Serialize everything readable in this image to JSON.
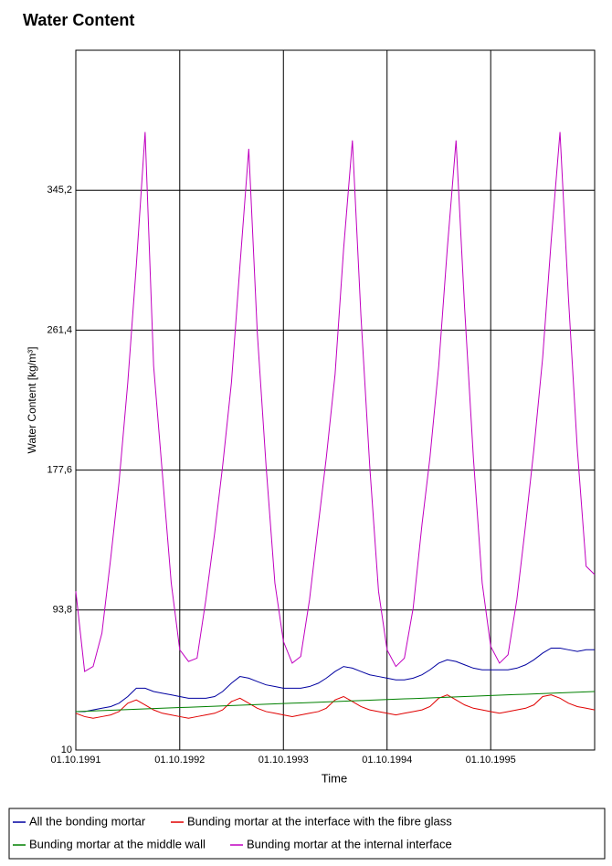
{
  "chart_data": {
    "type": "line",
    "title": "Water Content",
    "x_label": "Time",
    "y_label": "Water Content [kg/m³]",
    "x": [
      "01.10.1991",
      "01.11.1991",
      "01.12.1991",
      "01.01.1992",
      "01.02.1992",
      "01.03.1992",
      "01.04.1992",
      "01.05.1992",
      "01.06.1992",
      "01.07.1992",
      "01.08.1992",
      "01.09.1992",
      "01.10.1992",
      "01.11.1992",
      "01.12.1992",
      "01.01.1993",
      "01.02.1993",
      "01.03.1993",
      "01.04.1993",
      "01.05.1993",
      "01.06.1993",
      "01.07.1993",
      "01.08.1993",
      "01.09.1993",
      "01.10.1993",
      "01.11.1993",
      "01.12.1993",
      "01.01.1994",
      "01.02.1994",
      "01.03.1994",
      "01.04.1994",
      "01.05.1994",
      "01.06.1994",
      "01.07.1994",
      "01.08.1994",
      "01.09.1994",
      "01.10.1994",
      "01.11.1994",
      "01.12.1994",
      "01.01.1995",
      "01.02.1995",
      "01.03.1995",
      "01.04.1995",
      "01.05.1995",
      "01.06.1995",
      "01.07.1995",
      "01.08.1995",
      "01.09.1995",
      "01.10.1995",
      "01.11.1995",
      "01.12.1995",
      "01.01.1996",
      "01.02.1996",
      "01.03.1996",
      "01.04.1996",
      "01.05.1996",
      "01.06.1996",
      "01.07.1996",
      "01.08.1996",
      "01.09.1996",
      "01.10.1996"
    ],
    "xlim": [
      "01.10.1991",
      "01.10.1996"
    ],
    "xticks": [
      "01.10.1991",
      "01.10.1992",
      "01.10.1993",
      "01.10.1994",
      "01.10.1995"
    ],
    "ylim": [
      10,
      429
    ],
    "yticks": [
      10,
      {
        "value": 93.8,
        "label": "93,8"
      },
      {
        "value": 177.6,
        "label": "177,6"
      },
      {
        "value": 261.4,
        "label": "261,4"
      },
      {
        "value": 345.2,
        "label": "345,2"
      }
    ],
    "grid": true,
    "series": [
      {
        "name": "All the bonding mortar",
        "color": "#0000a0",
        "values": [
          33,
          33,
          34,
          35,
          36,
          38,
          42,
          47,
          47,
          45,
          44,
          43,
          42,
          41,
          41,
          41,
          42,
          45,
          50,
          54,
          53,
          51,
          49,
          48,
          47,
          47,
          47,
          48,
          50,
          53,
          57,
          60,
          59,
          57,
          55,
          54,
          53,
          52,
          52,
          53,
          55,
          58,
          62,
          64,
          63,
          61,
          59,
          58,
          58,
          58,
          58,
          59,
          61,
          64,
          68,
          71,
          71,
          70,
          69,
          70,
          70
        ]
      },
      {
        "name": "Bunding mortar at the interface with the fibre glass",
        "color": "#e00000",
        "values": [
          32,
          30,
          29,
          30,
          31,
          33,
          38,
          40,
          37,
          34,
          32,
          31,
          30,
          29,
          30,
          31,
          32,
          34,
          39,
          41,
          38,
          35,
          33,
          32,
          31,
          30,
          31,
          32,
          33,
          35,
          40,
          42,
          39,
          36,
          34,
          33,
          32,
          31,
          32,
          33,
          34,
          36,
          41,
          43,
          40,
          37,
          35,
          34,
          33,
          32,
          33,
          34,
          35,
          37,
          42,
          43,
          41,
          38,
          36,
          35,
          34
        ]
      },
      {
        "name": "Bunding mortar at the middle wall",
        "color": "#008000",
        "values": [
          33,
          33.2,
          33.4,
          33.6,
          33.8,
          34,
          34.2,
          34.4,
          34.6,
          34.8,
          35,
          35.2,
          35.4,
          35.6,
          35.8,
          36,
          36.2,
          36.4,
          36.6,
          36.8,
          37,
          37.2,
          37.4,
          37.6,
          37.8,
          38,
          38.2,
          38.4,
          38.6,
          38.8,
          39,
          39.2,
          39.4,
          39.6,
          39.8,
          40,
          40.2,
          40.4,
          40.6,
          40.8,
          41,
          41.2,
          41.4,
          41.6,
          41.8,
          42,
          42.2,
          42.4,
          42.6,
          42.8,
          43,
          43.2,
          43.4,
          43.6,
          43.8,
          44,
          44.2,
          44.4,
          44.6,
          44.8,
          45
        ]
      },
      {
        "name": "Bunding mortar at the internal interface",
        "color": "#c000c0",
        "values": [
          105,
          57,
          60,
          80,
          125,
          170,
          230,
          300,
          380,
          240,
          175,
          110,
          70,
          63,
          65,
          100,
          140,
          180,
          230,
          300,
          370,
          260,
          180,
          110,
          75,
          62,
          66,
          100,
          145,
          185,
          235,
          310,
          375,
          270,
          180,
          105,
          70,
          60,
          65,
          95,
          145,
          185,
          240,
          310,
          375,
          275,
          185,
          110,
          72,
          62,
          67,
          100,
          145,
          190,
          245,
          315,
          380,
          280,
          190,
          120,
          115
        ]
      }
    ]
  }
}
